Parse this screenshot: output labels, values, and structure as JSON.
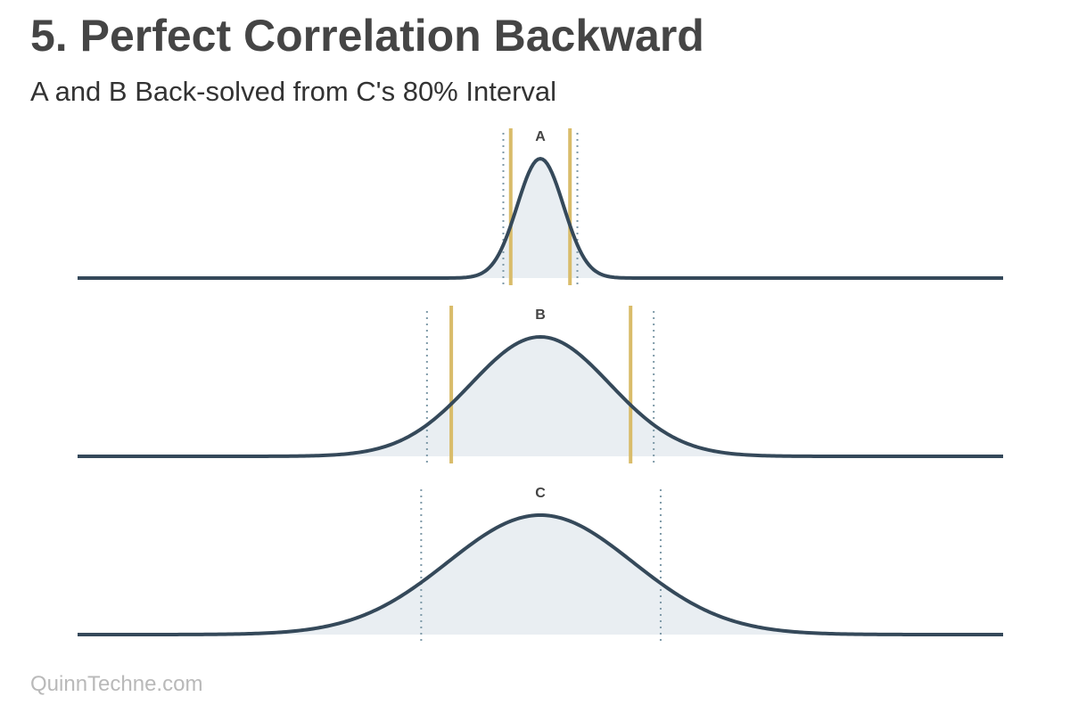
{
  "title": "5. Perfect Correlation Backward",
  "subtitle": "A and B Back-solved from C's 80% Interval",
  "footer": "QuinnTechne.com",
  "colors": {
    "curve": "#35495a",
    "fill": "#e9eef2",
    "interval_line": "#d9bc6a",
    "dotted_line": "#7f9aa8"
  },
  "chart_data": [
    {
      "type": "area",
      "label": "A",
      "x_range": [
        -20,
        20
      ],
      "distribution": {
        "mean": 0,
        "sd": 1.0
      },
      "interval_lines": [
        -1.28,
        1.28
      ],
      "dotted_lines": [
        -1.6,
        1.6
      ]
    },
    {
      "type": "area",
      "label": "B",
      "x_range": [
        -20,
        20
      ],
      "distribution": {
        "mean": 0,
        "sd": 3.0
      },
      "interval_lines": [
        -3.85,
        3.9
      ],
      "dotted_lines": [
        -4.9,
        4.9
      ]
    },
    {
      "type": "area",
      "label": "C",
      "x_range": [
        -20,
        20
      ],
      "distribution": {
        "mean": 0,
        "sd": 4.0
      },
      "interval_lines": [],
      "dotted_lines": [
        -5.15,
        5.2
      ]
    }
  ]
}
